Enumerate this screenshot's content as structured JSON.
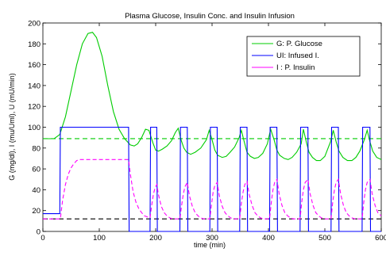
{
  "chart_data": {
    "type": "line",
    "title": "Plasma Glucose, Insulin Conc. and Insulin Infusion",
    "xlabel": "time (min)",
    "ylabel": "G (mg/dl), I (mu/Uml), U (mU/min)",
    "xlim": [
      0,
      600
    ],
    "ylim": [
      0,
      200
    ],
    "xticks": [
      0,
      100,
      200,
      300,
      400,
      500,
      600
    ],
    "yticks": [
      0,
      20,
      40,
      60,
      80,
      100,
      120,
      140,
      160,
      180,
      200
    ],
    "legend_position": "top-right",
    "grid": false,
    "series": [
      {
        "name": "G: P. Glucose",
        "color": "#00cc00",
        "style": "solid",
        "x": [
          0,
          20,
          30,
          40,
          50,
          60,
          70,
          80,
          88,
          95,
          105,
          115,
          125,
          135,
          145,
          150,
          155,
          162,
          168,
          175,
          182,
          188,
          195,
          200,
          205,
          212,
          220,
          228,
          235,
          240,
          245,
          250,
          255,
          262,
          270,
          280,
          290,
          295,
          300,
          305,
          310,
          318,
          325,
          332,
          340,
          348,
          352,
          357,
          362,
          368,
          375,
          382,
          390,
          398,
          404,
          410,
          415,
          420,
          428,
          435,
          442,
          450,
          458,
          462,
          467,
          472,
          478,
          485,
          492,
          500,
          510,
          515,
          520,
          525,
          532,
          540,
          548,
          555,
          562,
          570,
          575,
          580,
          585,
          592,
          600
        ],
        "y": [
          89,
          89,
          93,
          110,
          135,
          160,
          180,
          190,
          191,
          186,
          168,
          140,
          115,
          98,
          89,
          86,
          83,
          82,
          84,
          90,
          98,
          97,
          85,
          78,
          77,
          79,
          82,
          87,
          95,
          99,
          88,
          80,
          76,
          74,
          76,
          80,
          88,
          97,
          88,
          78,
          73,
          71,
          72,
          76,
          81,
          90,
          97,
          86,
          76,
          72,
          70,
          71,
          75,
          84,
          98,
          88,
          78,
          73,
          70,
          69,
          71,
          76,
          84,
          98,
          86,
          76,
          71,
          68,
          68,
          72,
          86,
          97,
          86,
          77,
          71,
          68,
          68,
          71,
          77,
          88,
          97,
          86,
          77,
          71,
          69
        ]
      },
      {
        "name": "UI: Infused I.",
        "color": "#0000ff",
        "style": "solid",
        "x": [
          0,
          29,
          30,
          31,
          152,
          153,
          190,
          191,
          202,
          203,
          243,
          244,
          256,
          257,
          296,
          297,
          309,
          310,
          349,
          350,
          362,
          363,
          402,
          403,
          415,
          416,
          456,
          457,
          470,
          471,
          511,
          512,
          524,
          525,
          566,
          567,
          580,
          581,
          600
        ],
        "y": [
          17,
          17,
          17,
          100,
          100,
          0,
          0,
          100,
          100,
          0,
          0,
          100,
          100,
          0,
          0,
          100,
          100,
          0,
          0,
          100,
          100,
          0,
          0,
          100,
          100,
          0,
          0,
          100,
          100,
          0,
          0,
          100,
          100,
          0,
          0,
          100,
          100,
          0,
          0
        ]
      },
      {
        "name": "I : P. Insulin",
        "color": "#ff00ff",
        "style": "dashed",
        "x": [
          0,
          29,
          31,
          35,
          40,
          45,
          50,
          55,
          60,
          65,
          70,
          80,
          100,
          120,
          140,
          152,
          155,
          160,
          165,
          170,
          175,
          180,
          185,
          190,
          193,
          196,
          199,
          202,
          205,
          210,
          215,
          220,
          225,
          230,
          235,
          243,
          246,
          249,
          252,
          256,
          260,
          265,
          270,
          275,
          280,
          285,
          290,
          296,
          299,
          302,
          305,
          309,
          313,
          318,
          323,
          328,
          333,
          338,
          343,
          349,
          352,
          355,
          358,
          362,
          366,
          371,
          376,
          381,
          386,
          391,
          396,
          402,
          405,
          408,
          411,
          415,
          419,
          424,
          429,
          434,
          439,
          444,
          450,
          456,
          459,
          462,
          465,
          470,
          474,
          479,
          484,
          489,
          494,
          499,
          505,
          511,
          514,
          517,
          520,
          524,
          528,
          533,
          538,
          543,
          548,
          553,
          560,
          566,
          569,
          572,
          575,
          580,
          584,
          589,
          594,
          600
        ],
        "y": [
          12,
          12,
          12,
          30,
          45,
          55,
          61,
          65,
          68,
          69,
          69,
          69,
          69,
          69,
          69,
          69,
          55,
          38,
          28,
          22,
          18,
          15,
          14,
          13,
          25,
          36,
          42,
          45,
          35,
          24,
          18,
          15,
          13,
          12,
          12,
          12,
          25,
          36,
          43,
          47,
          34,
          24,
          18,
          15,
          13,
          12,
          12,
          12,
          26,
          38,
          44,
          47,
          34,
          24,
          18,
          15,
          13,
          12,
          12,
          12,
          27,
          38,
          45,
          48,
          35,
          25,
          18,
          15,
          13,
          12,
          12,
          12,
          28,
          40,
          47,
          50,
          36,
          25,
          18,
          15,
          13,
          12,
          12,
          12,
          28,
          40,
          47,
          50,
          36,
          25,
          18,
          15,
          13,
          12,
          12,
          12,
          28,
          40,
          47,
          50,
          36,
          25,
          18,
          15,
          13,
          12,
          12,
          12,
          28,
          40,
          47,
          50,
          36,
          25,
          18,
          15
        ]
      }
    ],
    "reference_lines": [
      {
        "y": 89,
        "color": "#00cc00",
        "style": "dashed"
      },
      {
        "y": 12,
        "color": "#000000",
        "style": "dashed"
      }
    ]
  }
}
